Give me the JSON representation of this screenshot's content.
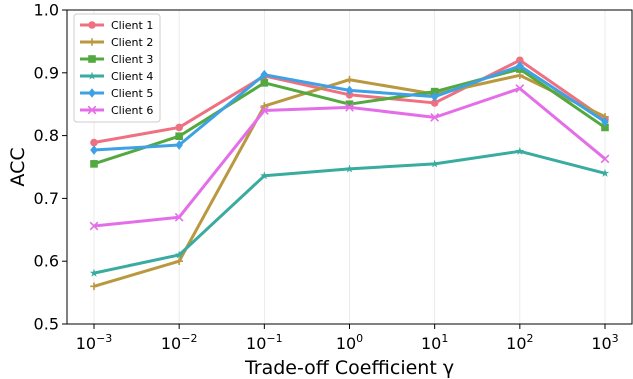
{
  "chart_data": {
    "type": "line",
    "title": "",
    "xlabel": "Trade-off Coefficient γ",
    "ylabel": "ACC",
    "x_tick_labels": [
      {
        "base": "10",
        "exp": "−3"
      },
      {
        "base": "10",
        "exp": "−2"
      },
      {
        "base": "10",
        "exp": "−1"
      },
      {
        "base": "10",
        "exp": "0"
      },
      {
        "base": "10",
        "exp": "1"
      },
      {
        "base": "10",
        "exp": "2"
      },
      {
        "base": "10",
        "exp": "3"
      }
    ],
    "x": [
      0.001,
      0.01,
      0.1,
      1,
      10,
      100,
      1000
    ],
    "xscale": "log",
    "ylim": [
      0.5,
      1.0
    ],
    "y_ticks": [
      "0.5",
      "0.6",
      "0.7",
      "0.8",
      "0.9",
      "1.0"
    ],
    "grid": "vertical",
    "legend_position": "top-left",
    "series": [
      {
        "name": "Client 1",
        "color": "#ee7081",
        "marker": "circle",
        "values": [
          0.789,
          0.813,
          0.895,
          0.865,
          0.852,
          0.92,
          0.826
        ]
      },
      {
        "name": "Client 2",
        "color": "#b9983f",
        "marker": "plus",
        "values": [
          0.56,
          0.6,
          0.847,
          0.889,
          0.866,
          0.896,
          0.83
        ]
      },
      {
        "name": "Client 3",
        "color": "#53a93f",
        "marker": "square",
        "values": [
          0.755,
          0.799,
          0.884,
          0.85,
          0.87,
          0.906,
          0.813
        ]
      },
      {
        "name": "Client 4",
        "color": "#3aab9f",
        "marker": "star",
        "values": [
          0.581,
          0.61,
          0.736,
          0.747,
          0.755,
          0.775,
          0.74
        ]
      },
      {
        "name": "Client 5",
        "color": "#3ea0e5",
        "marker": "diamond",
        "values": [
          0.777,
          0.785,
          0.897,
          0.872,
          0.862,
          0.911,
          0.822
        ]
      },
      {
        "name": "Client 6",
        "color": "#e46ee8",
        "marker": "x",
        "values": [
          0.656,
          0.67,
          0.84,
          0.845,
          0.829,
          0.875,
          0.763
        ]
      }
    ]
  }
}
